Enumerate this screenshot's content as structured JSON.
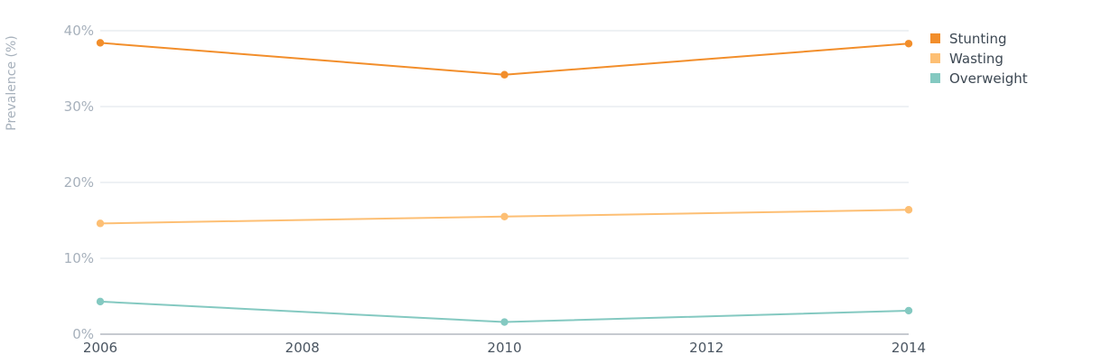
{
  "chart_data": {
    "type": "line",
    "ylabel": "Prevalence (%)",
    "xlabel": "",
    "x": [
      2006,
      2010,
      2014
    ],
    "xticks": [
      "2006",
      "2008",
      "2010",
      "2012",
      "2014"
    ],
    "xlim": [
      2006,
      2014
    ],
    "yticks": [
      "0%",
      "10%",
      "20%",
      "30%",
      "40%"
    ],
    "ylim": [
      0,
      40
    ],
    "grid": true,
    "legend_position": "top-right",
    "series": [
      {
        "name": "Stunting",
        "color": "#f28e2b",
        "values": [
          38.4,
          34.2,
          38.3
        ]
      },
      {
        "name": "Wasting",
        "color": "#fdbf74",
        "values": [
          14.6,
          15.5,
          16.4
        ]
      },
      {
        "name": "Overweight",
        "color": "#84c9c1",
        "values": [
          4.3,
          1.6,
          3.1
        ]
      }
    ]
  }
}
